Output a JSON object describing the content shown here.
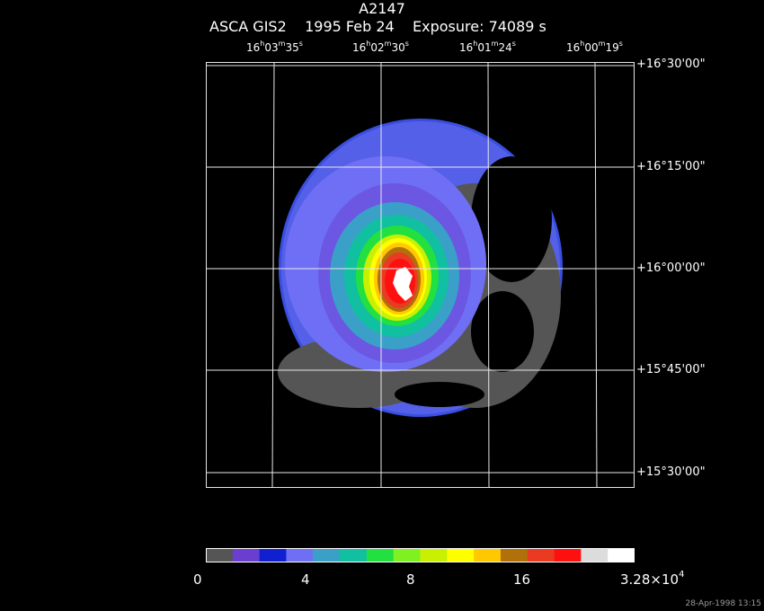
{
  "title": "A2147",
  "subtitle": "ASCA GIS2    1995 Feb 24    Exposure: 74089 s",
  "ra_labels": [
    {
      "h": "16",
      "m": "03",
      "s": "35"
    },
    {
      "h": "16",
      "m": "02",
      "s": "30"
    },
    {
      "h": "16",
      "m": "01",
      "s": "24"
    },
    {
      "h": "16",
      "m": "00",
      "s": "19"
    }
  ],
  "dec_labels": [
    "+16°30'00\"",
    "+16°15'00\"",
    "+16°00'00\"",
    "+15°45'00\"",
    "+15°30'00\""
  ],
  "colorbar": {
    "colors": [
      "#555555",
      "#6a3fd0",
      "#1020d0",
      "#6f6ff5",
      "#3aa0c8",
      "#10c0a0",
      "#22e040",
      "#80f020",
      "#c8f000",
      "#ffff00",
      "#ffc800",
      "#b0700a",
      "#ea3a22",
      "#ff1010",
      "#dcdcdc",
      "#ffffff"
    ],
    "labels": [
      "0",
      "4",
      "8",
      "16"
    ],
    "max_mantissa": "3.28×10",
    "max_exponent": "4"
  },
  "timestamp": "28-Apr-1998 13:15"
}
